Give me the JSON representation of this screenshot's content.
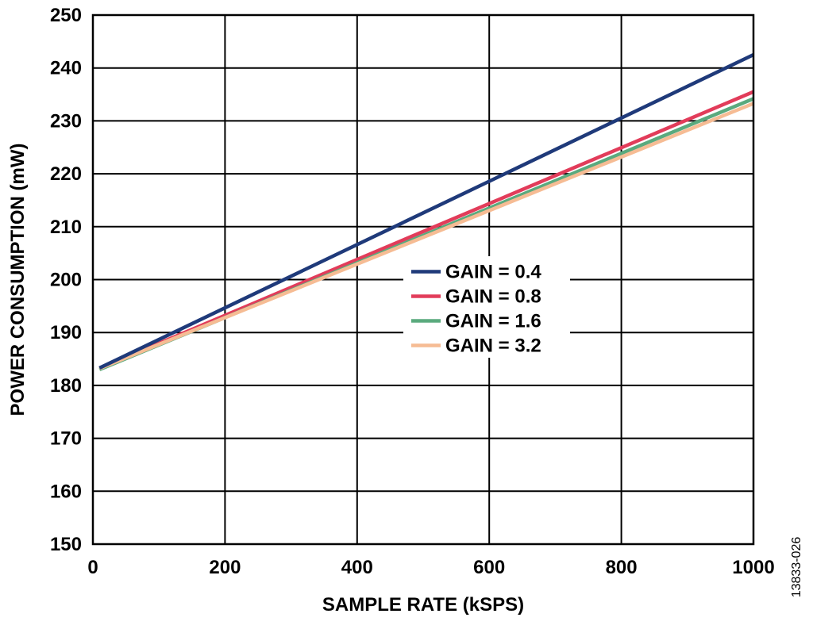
{
  "chart_data": {
    "type": "line",
    "title": "",
    "xlabel": "SAMPLE RATE (kSPS)",
    "ylabel": "POWER CONSUMPTION (mW)",
    "xlim": [
      0,
      1000
    ],
    "ylim": [
      150,
      250
    ],
    "xticks": [
      0,
      200,
      400,
      600,
      800,
      1000
    ],
    "yticks": [
      150,
      160,
      170,
      180,
      190,
      200,
      210,
      220,
      230,
      240,
      250
    ],
    "grid": true,
    "legend_position": "center-right",
    "series": [
      {
        "name": "GAIN = 0.4",
        "color": "#1f3a7a",
        "x": [
          10,
          1000
        ],
        "y": [
          183.3,
          242.5
        ]
      },
      {
        "name": "GAIN = 0.8",
        "color": "#e23c5a",
        "x": [
          10,
          1000
        ],
        "y": [
          183.2,
          235.5
        ]
      },
      {
        "name": "GAIN = 1.6",
        "color": "#5aaa7e",
        "x": [
          10,
          1000
        ],
        "y": [
          183.0,
          234.2
        ]
      },
      {
        "name": "GAIN = 3.2",
        "color": "#f6bc94",
        "x": [
          10,
          1000
        ],
        "y": [
          183.2,
          233.3
        ]
      }
    ]
  },
  "figure_id": "13833-026"
}
